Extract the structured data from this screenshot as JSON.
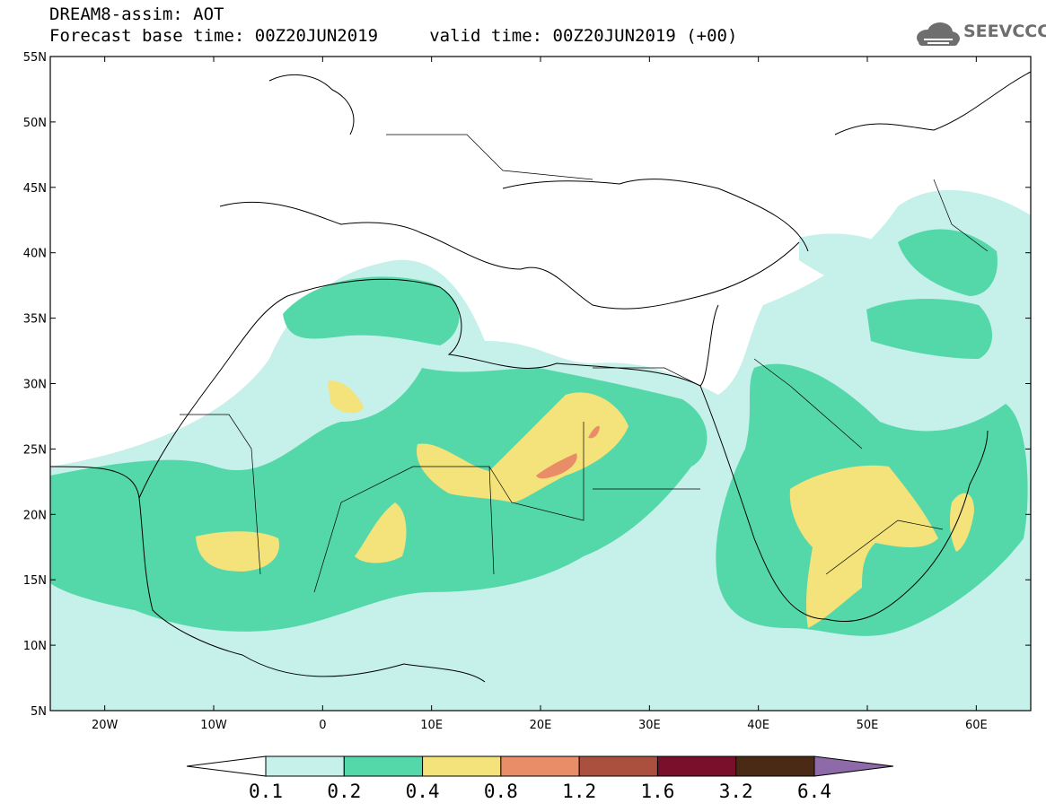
{
  "header": {
    "title_line1": "DREAM8-assim: AOT",
    "title_line2": "Forecast base time: 00Z20JUN2019     valid time: 00Z20JUN2019 (+00)"
  },
  "logo": {
    "text": "SEEVCCC",
    "icon": "cloud-icon"
  },
  "map": {
    "extent": {
      "lon_min": -25,
      "lon_max": 65,
      "lat_min": 5,
      "lat_max": 55
    },
    "lat_labels": [
      "55N",
      "50N",
      "45N",
      "40N",
      "35N",
      "30N",
      "25N",
      "20N",
      "15N",
      "10N",
      "5N"
    ],
    "lon_labels": [
      "20W",
      "10W",
      "0",
      "10E",
      "20E",
      "30E",
      "40E",
      "50E",
      "60E"
    ],
    "field": "Aerosol Optical Thickness (AOT)"
  },
  "colorbar": {
    "thresholds": [
      "0.1",
      "0.2",
      "0.4",
      "0.8",
      "1.2",
      "1.6",
      "3.2",
      "6.4"
    ],
    "colors": [
      "#ffffff",
      "#c6f0ea",
      "#55d8a9",
      "#f3e37a",
      "#e98d68",
      "#ab4f3e",
      "#7a0f2c",
      "#4a2a15",
      "#8e6aa8"
    ]
  }
}
